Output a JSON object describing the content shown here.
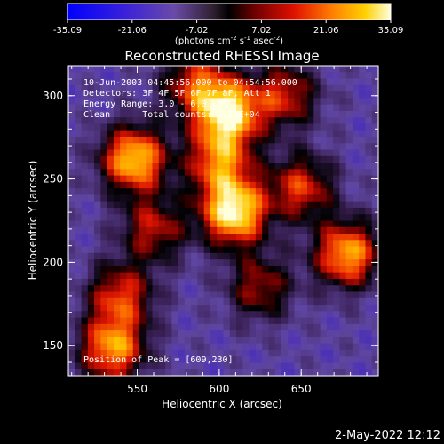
{
  "chart_data": {
    "type": "heatmap",
    "title": "Reconstructed RHESSI Image",
    "xlabel": "Heliocentric X (arcsec)",
    "ylabel": "Heliocentric Y (arcsec)",
    "xlim": [
      508,
      697
    ],
    "ylim": [
      132,
      318
    ],
    "xticks": [
      550,
      600,
      650
    ],
    "yticks": [
      150,
      200,
      250,
      300
    ],
    "colorbar": {
      "ticks": [
        "-35.09",
        "-21.06",
        "-7.02",
        "7.02",
        "21.06",
        "35.09"
      ],
      "range": [
        -35.09,
        35.09
      ],
      "unit_text": "(photons cm",
      "unit_sup1": "-2",
      "unit_mid1": " s",
      "unit_sup2": "-1",
      "unit_mid2": " asec",
      "unit_sup3": "-2",
      "unit_end": ")"
    },
    "annotations": [
      "10-Jun-2003 04:45:56.000 to 04:54:56.000",
      "Detectors: 3F 4F 5F 6F 7F 8F, Att 1",
      "Energy Range: 3.0 - 6.0 keV",
      "Clean      Total counts: 1.20E+04"
    ],
    "peak_label": "Position of Peak = [609,230]",
    "peak": [
      609,
      230
    ],
    "sources": [
      {
        "x": 609,
        "y": 230,
        "intensity": 35.09
      },
      {
        "x": 605,
        "y": 290,
        "intensity": 33
      },
      {
        "x": 548,
        "y": 262,
        "intensity": 30
      },
      {
        "x": 678,
        "y": 205,
        "intensity": 26
      },
      {
        "x": 535,
        "y": 148,
        "intensity": 24
      },
      {
        "x": 600,
        "y": 260,
        "intensity": 18
      },
      {
        "x": 650,
        "y": 245,
        "intensity": 14
      },
      {
        "x": 640,
        "y": 300,
        "intensity": 12
      },
      {
        "x": 585,
        "y": 308,
        "intensity": 12
      },
      {
        "x": 560,
        "y": 220,
        "intensity": 10
      },
      {
        "x": 625,
        "y": 185,
        "intensity": 8
      },
      {
        "x": 540,
        "y": 180,
        "intensity": 14
      }
    ]
  },
  "footer_date": "2-May-2022 12:12"
}
